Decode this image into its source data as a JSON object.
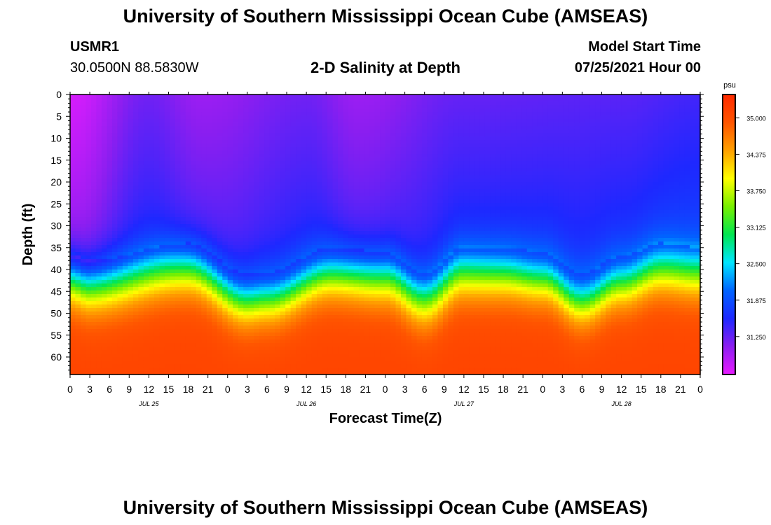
{
  "header": {
    "title": "University of Southern Mississippi Ocean Cube (AMSEAS)",
    "station": "USMR1",
    "coordinates": "30.0500N  88.5830W",
    "plot_title": "2-D Salinity at Depth",
    "model_start_label": "Model Start Time",
    "model_start_value": "07/25/2021 Hour 00"
  },
  "footer": {
    "title": "University of Southern Mississippi Ocean Cube (AMSEAS)"
  },
  "chart_data": {
    "type": "heatmap",
    "title": "2-D Salinity at Depth",
    "xlabel": "Forecast Time(Z)",
    "ylabel": "Depth (ft)",
    "x_hours_range": [
      0,
      96
    ],
    "x_tick_labels": [
      "0",
      "3",
      "6",
      "9",
      "12",
      "15",
      "18",
      "21",
      "0",
      "3",
      "6",
      "9",
      "12",
      "15",
      "18",
      "21",
      "0",
      "3",
      "6",
      "9",
      "12",
      "15",
      "18",
      "21",
      "0",
      "3",
      "6",
      "9",
      "12",
      "15",
      "18",
      "21",
      "0"
    ],
    "date_labels": [
      {
        "label": "JUL 25",
        "hour": 12
      },
      {
        "label": "JUL 26",
        "hour": 36
      },
      {
        "label": "JUL 27",
        "hour": 60
      },
      {
        "label": "JUL 28",
        "hour": 84
      }
    ],
    "y_range": [
      0,
      64
    ],
    "y_ticks": [
      0,
      5,
      10,
      15,
      20,
      25,
      30,
      35,
      40,
      45,
      50,
      55,
      60
    ],
    "colorbar": {
      "unit": "psu",
      "range": [
        30.6,
        35.4
      ],
      "tick_labels": [
        "35.000",
        "34.375",
        "33.750",
        "33.125",
        "32.500",
        "31.875",
        "31.250"
      ],
      "tick_values": [
        35.0,
        34.375,
        33.75,
        33.125,
        32.5,
        31.875,
        31.25
      ],
      "colors": [
        "#e81cff",
        "#8c1ef0",
        "#1e28ff",
        "#0064ff",
        "#00e6ff",
        "#00e650",
        "#78f000",
        "#ffff00",
        "#ffa000",
        "#ff5500",
        "#ff2a00"
      ]
    },
    "halocline_depth_ft": [
      {
        "hour": 0,
        "depth": 36.5
      },
      {
        "hour": 3,
        "depth": 38
      },
      {
        "hour": 18,
        "depth": 34
      },
      {
        "hour": 27,
        "depth": 41
      },
      {
        "hour": 30,
        "depth": 40.5
      },
      {
        "hour": 40,
        "depth": 35
      },
      {
        "hour": 48,
        "depth": 36
      },
      {
        "hour": 54,
        "depth": 41
      },
      {
        "hour": 60,
        "depth": 35
      },
      {
        "hour": 66,
        "depth": 35
      },
      {
        "hour": 72,
        "depth": 36
      },
      {
        "hour": 78,
        "depth": 41
      },
      {
        "hour": 84,
        "depth": 37
      },
      {
        "hour": 90,
        "depth": 34
      },
      {
        "hour": 96,
        "depth": 35
      }
    ],
    "surface_salinity_psu": [
      {
        "hour": 0,
        "value": 30.7
      },
      {
        "hour": 12,
        "value": 31.2
      },
      {
        "hour": 20,
        "value": 31.0
      },
      {
        "hour": 36,
        "value": 31.2
      },
      {
        "hour": 44,
        "value": 31.0
      },
      {
        "hour": 60,
        "value": 31.25
      },
      {
        "hour": 84,
        "value": 31.3
      },
      {
        "hour": 96,
        "value": 31.4
      }
    ],
    "deep_salinity_psu": 35.1
  }
}
